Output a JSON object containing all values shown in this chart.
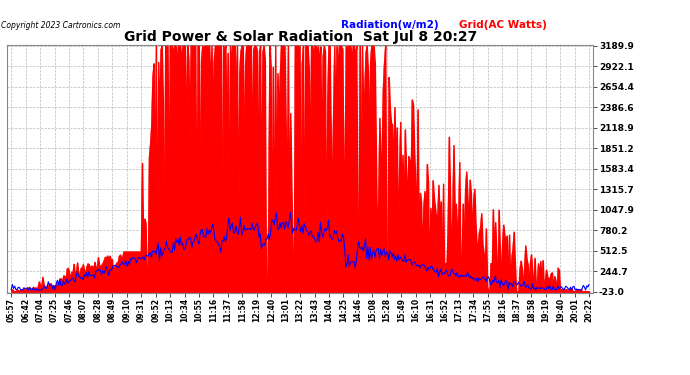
{
  "title": "Grid Power & Solar Radiation  Sat Jul 8 20:27",
  "copyright": "Copyright 2023 Cartronics.com",
  "legend_radiation": "Radiation(w/m2)",
  "legend_grid": "Grid(AC Watts)",
  "yticks": [
    3189.9,
    2922.1,
    2654.4,
    2386.6,
    2118.9,
    1851.2,
    1583.4,
    1315.7,
    1047.9,
    780.2,
    512.5,
    244.7,
    -23.0
  ],
  "ymin": -23.0,
  "ymax": 3189.9,
  "background_color": "#ffffff",
  "plot_bg_color": "#ffffff",
  "grid_color": "#aaaaaa",
  "radiation_color": "#0000ff",
  "grid_power_color": "#ff0000",
  "fill_color": "#ff0000",
  "time_labels": [
    "05:57",
    "06:42",
    "07:04",
    "07:25",
    "07:46",
    "08:07",
    "08:28",
    "08:49",
    "09:10",
    "09:31",
    "09:52",
    "10:13",
    "10:34",
    "10:55",
    "11:16",
    "11:37",
    "11:58",
    "12:19",
    "12:40",
    "13:01",
    "13:22",
    "13:43",
    "14:04",
    "14:25",
    "14:46",
    "15:08",
    "15:28",
    "15:49",
    "16:10",
    "16:31",
    "16:52",
    "17:13",
    "17:34",
    "17:55",
    "18:16",
    "18:37",
    "18:58",
    "19:19",
    "19:40",
    "20:01",
    "20:22"
  ]
}
